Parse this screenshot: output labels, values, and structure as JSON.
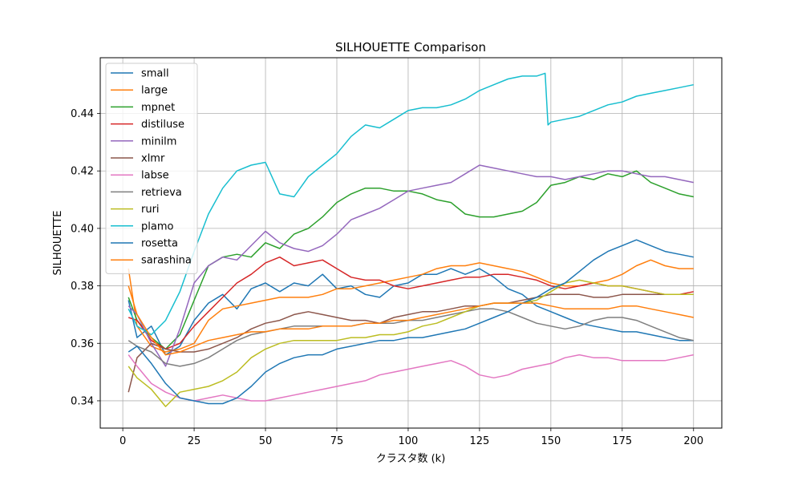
{
  "chart_data": {
    "type": "line",
    "title": "SILHOUETTE Comparison",
    "xlabel": "クラスタ数 (k)",
    "ylabel": "SILHOUETTE",
    "xlim": [
      -7.9,
      209.9
    ],
    "ylim": [
      0.3305,
      0.4594
    ],
    "xticks": [
      0,
      25,
      50,
      75,
      100,
      125,
      150,
      175,
      200
    ],
    "yticks": [
      0.34,
      0.36,
      0.38,
      0.4,
      0.42,
      0.44
    ],
    "ytick_labels": [
      "0.34",
      "0.36",
      "0.38",
      "0.40",
      "0.42",
      "0.44"
    ],
    "grid": true,
    "legend_position": "upper left",
    "series": [
      {
        "name": "small",
        "color": "#1f77b4",
        "x": [
          2,
          5,
          10,
          15,
          20,
          25,
          30,
          35,
          40,
          45,
          50,
          55,
          60,
          65,
          70,
          75,
          80,
          85,
          90,
          95,
          100,
          105,
          110,
          115,
          120,
          125,
          130,
          135,
          140,
          145,
          150,
          155,
          160,
          165,
          170,
          175,
          180,
          185,
          190,
          195,
          200
        ],
        "y": [
          0.375,
          0.362,
          0.366,
          0.356,
          0.359,
          0.368,
          0.374,
          0.377,
          0.372,
          0.379,
          0.381,
          0.378,
          0.381,
          0.38,
          0.384,
          0.379,
          0.38,
          0.377,
          0.376,
          0.38,
          0.381,
          0.384,
          0.384,
          0.386,
          0.384,
          0.386,
          0.383,
          0.379,
          0.377,
          0.373,
          0.371,
          0.369,
          0.367,
          0.366,
          0.365,
          0.364,
          0.364,
          0.363,
          0.362,
          0.361,
          0.361
        ]
      },
      {
        "name": "large",
        "color": "#ff7f0e",
        "x": [
          2,
          5,
          10,
          15,
          20,
          25,
          30,
          35,
          40,
          45,
          50,
          55,
          60,
          65,
          70,
          75,
          80,
          85,
          90,
          95,
          100,
          105,
          110,
          115,
          120,
          125,
          130,
          135,
          140,
          145,
          150,
          155,
          160,
          165,
          170,
          175,
          180,
          185,
          190,
          195,
          200
        ],
        "y": [
          0.386,
          0.366,
          0.359,
          0.357,
          0.358,
          0.36,
          0.368,
          0.372,
          0.373,
          0.374,
          0.375,
          0.376,
          0.376,
          0.376,
          0.377,
          0.379,
          0.379,
          0.38,
          0.381,
          0.382,
          0.383,
          0.384,
          0.386,
          0.387,
          0.387,
          0.388,
          0.387,
          0.386,
          0.385,
          0.383,
          0.381,
          0.38,
          0.38,
          0.381,
          0.382,
          0.384,
          0.387,
          0.389,
          0.387,
          0.386,
          0.386
        ]
      },
      {
        "name": "mpnet",
        "color": "#2ca02c",
        "x": [
          2,
          5,
          10,
          15,
          20,
          25,
          30,
          35,
          40,
          45,
          50,
          55,
          60,
          65,
          70,
          75,
          80,
          85,
          90,
          95,
          100,
          105,
          110,
          115,
          120,
          125,
          130,
          135,
          140,
          145,
          150,
          155,
          160,
          165,
          170,
          175,
          180,
          185,
          190,
          195,
          200
        ],
        "y": [
          0.376,
          0.368,
          0.362,
          0.358,
          0.363,
          0.375,
          0.387,
          0.39,
          0.391,
          0.39,
          0.395,
          0.393,
          0.398,
          0.4,
          0.404,
          0.409,
          0.412,
          0.414,
          0.414,
          0.413,
          0.413,
          0.412,
          0.41,
          0.409,
          0.405,
          0.404,
          0.404,
          0.405,
          0.406,
          0.409,
          0.415,
          0.416,
          0.418,
          0.417,
          0.419,
          0.418,
          0.42,
          0.416,
          0.414,
          0.412,
          0.411
        ]
      },
      {
        "name": "distiluse",
        "color": "#d62728",
        "x": [
          2,
          5,
          10,
          15,
          20,
          25,
          30,
          35,
          40,
          45,
          50,
          55,
          60,
          65,
          70,
          75,
          80,
          85,
          90,
          95,
          100,
          105,
          110,
          115,
          120,
          125,
          130,
          135,
          140,
          145,
          150,
          155,
          160,
          165,
          170,
          175,
          180,
          185,
          190,
          195,
          200
        ],
        "y": [
          0.369,
          0.368,
          0.361,
          0.358,
          0.36,
          0.366,
          0.371,
          0.376,
          0.381,
          0.384,
          0.388,
          0.39,
          0.387,
          0.388,
          0.389,
          0.386,
          0.383,
          0.382,
          0.382,
          0.38,
          0.379,
          0.38,
          0.381,
          0.382,
          0.383,
          0.383,
          0.384,
          0.384,
          0.383,
          0.382,
          0.38,
          0.379,
          0.38,
          0.381,
          0.38,
          0.38,
          0.379,
          0.378,
          0.377,
          0.377,
          0.378
        ]
      },
      {
        "name": "minilm",
        "color": "#9467bd",
        "x": [
          2,
          5,
          10,
          15,
          20,
          25,
          30,
          35,
          40,
          45,
          50,
          55,
          60,
          65,
          70,
          75,
          80,
          85,
          90,
          95,
          100,
          105,
          110,
          115,
          120,
          125,
          130,
          135,
          140,
          145,
          150,
          155,
          160,
          165,
          170,
          175,
          180,
          185,
          190,
          195,
          200
        ],
        "y": [
          0.373,
          0.37,
          0.36,
          0.352,
          0.365,
          0.381,
          0.387,
          0.39,
          0.389,
          0.394,
          0.399,
          0.395,
          0.393,
          0.392,
          0.394,
          0.398,
          0.403,
          0.405,
          0.407,
          0.41,
          0.413,
          0.414,
          0.415,
          0.416,
          0.419,
          0.422,
          0.421,
          0.42,
          0.419,
          0.418,
          0.418,
          0.417,
          0.418,
          0.419,
          0.42,
          0.42,
          0.419,
          0.418,
          0.418,
          0.417,
          0.416
        ]
      },
      {
        "name": "xlmr",
        "color": "#8c564b",
        "x": [
          2,
          5,
          10,
          15,
          20,
          25,
          30,
          35,
          40,
          45,
          50,
          55,
          60,
          65,
          70,
          75,
          80,
          85,
          90,
          95,
          100,
          105,
          110,
          115,
          120,
          125,
          130,
          135,
          140,
          145,
          150,
          155,
          160,
          165,
          170,
          175,
          180,
          185,
          190,
          195,
          200
        ],
        "y": [
          0.343,
          0.355,
          0.36,
          0.358,
          0.357,
          0.357,
          0.358,
          0.36,
          0.362,
          0.365,
          0.367,
          0.368,
          0.37,
          0.371,
          0.37,
          0.369,
          0.368,
          0.368,
          0.367,
          0.369,
          0.37,
          0.371,
          0.371,
          0.372,
          0.373,
          0.373,
          0.374,
          0.374,
          0.375,
          0.376,
          0.377,
          0.377,
          0.377,
          0.376,
          0.376,
          0.377,
          0.377,
          0.377,
          0.377,
          0.377,
          0.377
        ]
      },
      {
        "name": "labse",
        "color": "#e377c2",
        "x": [
          2,
          5,
          10,
          15,
          20,
          25,
          30,
          35,
          40,
          45,
          50,
          55,
          60,
          65,
          70,
          75,
          80,
          85,
          90,
          95,
          100,
          105,
          110,
          115,
          120,
          125,
          130,
          135,
          140,
          145,
          150,
          155,
          160,
          165,
          170,
          175,
          180,
          185,
          190,
          195,
          200
        ],
        "y": [
          0.356,
          0.352,
          0.346,
          0.343,
          0.341,
          0.34,
          0.341,
          0.342,
          0.341,
          0.34,
          0.34,
          0.341,
          0.342,
          0.343,
          0.344,
          0.345,
          0.346,
          0.347,
          0.349,
          0.35,
          0.351,
          0.352,
          0.353,
          0.354,
          0.352,
          0.349,
          0.348,
          0.349,
          0.351,
          0.352,
          0.353,
          0.355,
          0.356,
          0.355,
          0.355,
          0.354,
          0.354,
          0.354,
          0.354,
          0.355,
          0.356
        ]
      },
      {
        "name": "retrieva",
        "color": "#7f7f7f",
        "x": [
          2,
          5,
          10,
          15,
          20,
          25,
          30,
          35,
          40,
          45,
          50,
          55,
          60,
          65,
          70,
          75,
          80,
          85,
          90,
          95,
          100,
          105,
          110,
          115,
          120,
          125,
          130,
          135,
          140,
          145,
          150,
          155,
          160,
          165,
          170,
          175,
          180,
          185,
          190,
          195,
          200
        ],
        "y": [
          0.361,
          0.359,
          0.357,
          0.353,
          0.352,
          0.353,
          0.355,
          0.358,
          0.361,
          0.363,
          0.364,
          0.365,
          0.366,
          0.366,
          0.366,
          0.366,
          0.366,
          0.367,
          0.367,
          0.367,
          0.368,
          0.368,
          0.369,
          0.37,
          0.371,
          0.372,
          0.372,
          0.371,
          0.369,
          0.367,
          0.366,
          0.365,
          0.366,
          0.368,
          0.369,
          0.369,
          0.368,
          0.366,
          0.364,
          0.362,
          0.361
        ]
      },
      {
        "name": "ruri",
        "color": "#bcbd22",
        "x": [
          2,
          5,
          10,
          15,
          20,
          25,
          30,
          35,
          40,
          45,
          50,
          55,
          60,
          65,
          70,
          75,
          80,
          85,
          90,
          95,
          100,
          105,
          110,
          115,
          120,
          125,
          130,
          135,
          140,
          145,
          150,
          155,
          160,
          165,
          170,
          175,
          180,
          185,
          190,
          195,
          200
        ],
        "y": [
          0.352,
          0.348,
          0.344,
          0.338,
          0.343,
          0.344,
          0.345,
          0.347,
          0.35,
          0.355,
          0.358,
          0.36,
          0.361,
          0.361,
          0.361,
          0.361,
          0.362,
          0.362,
          0.363,
          0.363,
          0.364,
          0.366,
          0.367,
          0.369,
          0.371,
          0.373,
          0.374,
          0.374,
          0.374,
          0.375,
          0.378,
          0.381,
          0.382,
          0.381,
          0.38,
          0.38,
          0.379,
          0.378,
          0.377,
          0.377,
          0.377
        ]
      },
      {
        "name": "plamo",
        "color": "#17becf",
        "x": [
          2,
          5,
          10,
          15,
          20,
          25,
          30,
          35,
          40,
          45,
          50,
          55,
          60,
          65,
          70,
          75,
          80,
          85,
          90,
          95,
          100,
          105,
          110,
          115,
          120,
          125,
          130,
          135,
          140,
          145,
          148,
          149,
          150,
          155,
          160,
          165,
          170,
          175,
          180,
          185,
          190,
          195,
          200
        ],
        "y": [
          0.372,
          0.366,
          0.363,
          0.368,
          0.378,
          0.392,
          0.405,
          0.414,
          0.42,
          0.422,
          0.423,
          0.412,
          0.411,
          0.418,
          0.422,
          0.426,
          0.432,
          0.436,
          0.435,
          0.438,
          0.441,
          0.442,
          0.442,
          0.443,
          0.445,
          0.448,
          0.45,
          0.452,
          0.453,
          0.453,
          0.454,
          0.436,
          0.437,
          0.438,
          0.439,
          0.441,
          0.443,
          0.444,
          0.446,
          0.447,
          0.448,
          0.449,
          0.45
        ]
      },
      {
        "name": "rosetta",
        "color": "#1f77b4",
        "x": [
          2,
          5,
          10,
          15,
          20,
          25,
          30,
          35,
          40,
          45,
          50,
          55,
          60,
          65,
          70,
          75,
          80,
          85,
          90,
          95,
          100,
          105,
          110,
          115,
          120,
          125,
          130,
          135,
          140,
          145,
          150,
          155,
          160,
          165,
          170,
          175,
          180,
          185,
          190,
          195,
          200
        ],
        "y": [
          0.357,
          0.359,
          0.353,
          0.346,
          0.341,
          0.34,
          0.339,
          0.339,
          0.341,
          0.345,
          0.35,
          0.353,
          0.355,
          0.356,
          0.356,
          0.358,
          0.359,
          0.36,
          0.361,
          0.361,
          0.362,
          0.362,
          0.363,
          0.364,
          0.365,
          0.367,
          0.369,
          0.371,
          0.374,
          0.376,
          0.379,
          0.381,
          0.385,
          0.389,
          0.392,
          0.394,
          0.396,
          0.394,
          0.392,
          0.391,
          0.39
        ]
      },
      {
        "name": "sarashina",
        "color": "#ff7f0e",
        "x": [
          2,
          5,
          10,
          15,
          20,
          25,
          30,
          35,
          40,
          45,
          50,
          55,
          60,
          65,
          70,
          75,
          80,
          85,
          90,
          95,
          100,
          105,
          110,
          115,
          120,
          125,
          130,
          135,
          140,
          145,
          150,
          155,
          160,
          165,
          170,
          175,
          180,
          185,
          190,
          195,
          200
        ],
        "y": [
          0.38,
          0.37,
          0.362,
          0.356,
          0.357,
          0.359,
          0.361,
          0.362,
          0.363,
          0.364,
          0.364,
          0.365,
          0.365,
          0.365,
          0.366,
          0.366,
          0.366,
          0.367,
          0.367,
          0.368,
          0.368,
          0.369,
          0.37,
          0.371,
          0.372,
          0.373,
          0.374,
          0.374,
          0.374,
          0.374,
          0.373,
          0.372,
          0.372,
          0.372,
          0.372,
          0.373,
          0.373,
          0.372,
          0.371,
          0.37,
          0.369
        ]
      }
    ]
  }
}
